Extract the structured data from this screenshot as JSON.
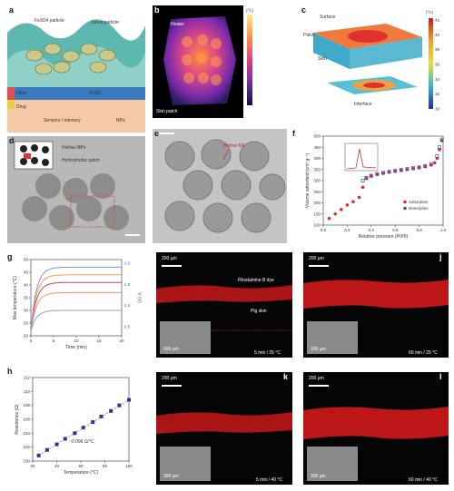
{
  "panels": {
    "a": {
      "label": "a",
      "texts": [
        "Fe3O4 particle",
        "Janus particle",
        "Fibre",
        "FeSiC",
        "Drug",
        "Sensors / memory",
        "NPs"
      ]
    },
    "b": {
      "label": "b",
      "texts": [
        "Heater",
        "Skin patch"
      ],
      "colorbar_unit": "(°C)"
    },
    "c": {
      "label": "c",
      "texts": [
        "Surface",
        "Patch",
        "Skin",
        "Interface"
      ],
      "colorbar_unit": "(°C)",
      "colorbar_ticks": [
        "42",
        "40",
        "38",
        "36",
        "34",
        "32",
        "30"
      ]
    },
    "d": {
      "label": "d",
      "texts": [
        "Hollow MPs",
        "Hydrophobic patch"
      ]
    },
    "e": {
      "label": "e",
      "texts": [
        "Hollow MP"
      ]
    },
    "f": {
      "label": "f",
      "texts": [
        "Adsorption",
        "Desorption"
      ]
    },
    "g": {
      "label": "g"
    },
    "h": {
      "label": "h",
      "texts": [
        "~0.096 Ω/°C"
      ]
    },
    "i": {
      "label": "i",
      "texts": [
        "200 µm",
        "Rhodamine B dye",
        "Pig skin",
        "5 min / 25 °C",
        "300 µm"
      ]
    },
    "j": {
      "label": "j",
      "texts": [
        "200 µm",
        "60 min / 25 °C",
        "300 µm"
      ]
    },
    "k": {
      "label": "k",
      "texts": [
        "200 µm",
        "5 min / 40 °C",
        "300 µm"
      ]
    },
    "l": {
      "label": "l",
      "texts": [
        "200 µm",
        "60 min / 40 °C",
        "300 µm"
      ]
    }
  },
  "chart_data": [
    {
      "id": "f",
      "type": "scatter",
      "xlabel": "Relative pressure (P/P0)",
      "ylabel": "Volume adsorbed (cm³ g⁻¹)",
      "xlim": [
        0,
        1.0
      ],
      "ylim": [
        100,
        500
      ],
      "xticks": [
        "0.0",
        "0.2",
        "0.4",
        "0.6",
        "0.8",
        "1.0"
      ],
      "yticks": [
        "100",
        "150",
        "200",
        "250",
        "300",
        "350",
        "400",
        "450",
        "500"
      ],
      "legend": "bottom-right",
      "series": [
        {
          "name": "Adsorption",
          "color": "#e03030",
          "x": [
            0.05,
            0.1,
            0.15,
            0.2,
            0.25,
            0.3,
            0.33,
            0.36,
            0.4,
            0.45,
            0.5,
            0.55,
            0.6,
            0.65,
            0.7,
            0.75,
            0.8,
            0.85,
            0.9,
            0.93,
            0.95,
            0.97,
            0.99
          ],
          "y": [
            130,
            150,
            170,
            190,
            205,
            225,
            270,
            310,
            320,
            327,
            333,
            338,
            342,
            346,
            350,
            354,
            358,
            363,
            370,
            380,
            400,
            440,
            480
          ]
        },
        {
          "name": "Desorption",
          "color": "#3050c0",
          "x": [
            0.99,
            0.97,
            0.95,
            0.9,
            0.85,
            0.8,
            0.75,
            0.7,
            0.65,
            0.6,
            0.55,
            0.5,
            0.45,
            0.4,
            0.36,
            0.33
          ],
          "y": [
            485,
            450,
            410,
            375,
            366,
            360,
            356,
            352,
            348,
            344,
            340,
            335,
            330,
            322,
            312,
            300
          ]
        }
      ],
      "inset": {
        "xlim": [
          0,
          10
        ],
        "ylim": [
          0,
          0.04
        ]
      }
    },
    {
      "id": "g",
      "type": "line",
      "xlabel": "Time (min)",
      "ylabel": "Max temperature (°C)",
      "ylabel_right": "V (V)",
      "xlim": [
        0,
        20
      ],
      "ylim": [
        20,
        50
      ],
      "xticks": [
        "0",
        "5",
        "10",
        "15",
        "20"
      ],
      "yticks": [
        "20",
        "25",
        "30",
        "35",
        "40",
        "45",
        "50"
      ],
      "yticks_right": [
        "0.5",
        "1.0",
        "1.5",
        "2.0"
      ],
      "series": [
        {
          "color": "#a0a0a0",
          "plateau": 30
        },
        {
          "color": "#f09070",
          "plateau": 37
        },
        {
          "color": "#e04040",
          "plateau": 41
        },
        {
          "color": "#f0a050",
          "plateau": 44
        },
        {
          "color": "#8090e0",
          "plateau": 47
        }
      ]
    },
    {
      "id": "h",
      "type": "scatter",
      "xlabel": "Temperature (°C)",
      "ylabel": "Resistance (Ω)",
      "xlim": [
        20,
        100
      ],
      "ylim": [
        100,
        112
      ],
      "xticks": [
        "20",
        "40",
        "60",
        "80",
        "100"
      ],
      "yticks": [
        "100",
        "102",
        "104",
        "106",
        "108",
        "110",
        "112"
      ],
      "series": [
        {
          "color": "#3030a0",
          "x": [
            25,
            32,
            40,
            47,
            55,
            62,
            70,
            77,
            85,
            92,
            100
          ],
          "y": [
            100.8,
            101.6,
            102.4,
            103.2,
            104.0,
            104.8,
            105.6,
            106.4,
            107.2,
            108.0,
            108.8
          ]
        }
      ],
      "annotation": "~0.096 Ω/°C"
    }
  ]
}
